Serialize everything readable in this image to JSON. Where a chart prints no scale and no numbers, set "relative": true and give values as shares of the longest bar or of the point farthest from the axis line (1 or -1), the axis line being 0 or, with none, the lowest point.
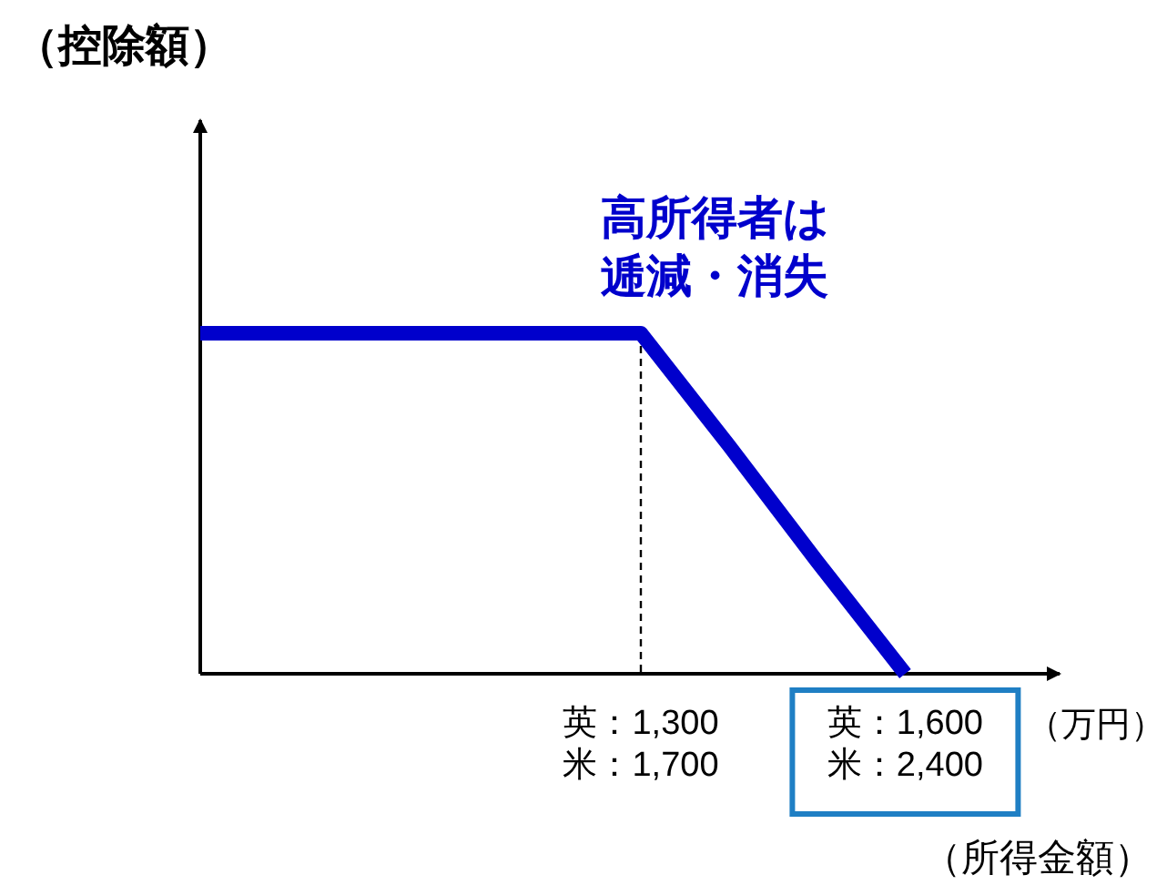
{
  "chart_data": {
    "type": "line",
    "relative": true,
    "xlabel": "（所得金額）",
    "annotations": [
      "高所得者は",
      "逓減・消失",
      "（万円）",
      "（控除額）"
    ],
    "categories": [
      null,
      null,
      null,
      null,
      null,
      "英：1,300\n米：1,700",
      null,
      null,
      "英：1,600\n米：2,400"
    ],
    "series": [
      {
        "color": "#0000cc",
        "values": [
          1,
          1,
          1,
          1,
          1,
          1,
          0.67,
          0.33,
          0
        ]
      }
    ],
    "ref_lines": [
      {
        "axis": "x",
        "value": "英：1,300\n米：1,700",
        "line_style": "dashed",
        "color": "#000000"
      }
    ],
    "marker": "none",
    "line_style": "solid"
  }
}
